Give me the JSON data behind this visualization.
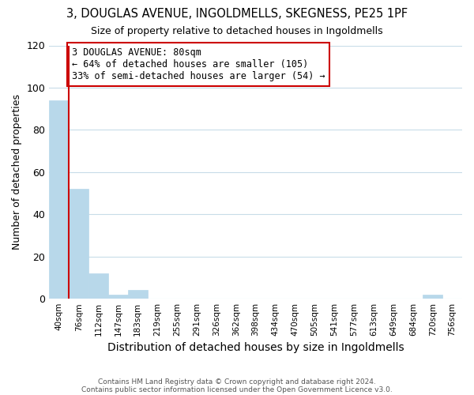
{
  "title": "3, DOUGLAS AVENUE, INGOLDMELLS, SKEGNESS, PE25 1PF",
  "subtitle": "Size of property relative to detached houses in Ingoldmells",
  "xlabel": "Distribution of detached houses by size in Ingoldmells",
  "ylabel": "Number of detached properties",
  "bar_color": "#b8d8ea",
  "bin_labels": [
    "40sqm",
    "76sqm",
    "112sqm",
    "147sqm",
    "183sqm",
    "219sqm",
    "255sqm",
    "291sqm",
    "326sqm",
    "362sqm",
    "398sqm",
    "434sqm",
    "470sqm",
    "505sqm",
    "541sqm",
    "577sqm",
    "613sqm",
    "649sqm",
    "684sqm",
    "720sqm",
    "756sqm"
  ],
  "bar_heights": [
    94,
    52,
    12,
    2,
    4,
    0,
    0,
    0,
    0,
    0,
    0,
    0,
    0,
    0,
    0,
    0,
    0,
    0,
    0,
    2,
    0
  ],
  "ylim": [
    0,
    120
  ],
  "yticks": [
    0,
    20,
    40,
    60,
    80,
    100,
    120
  ],
  "annotation_text": "3 DOUGLAS AVENUE: 80sqm\n← 64% of detached houses are smaller (105)\n33% of semi-detached houses are larger (54) →",
  "annotation_box_color": "#ffffff",
  "annotation_box_edge": "#cc0000",
  "property_line_color": "#cc0000",
  "footer_line1": "Contains HM Land Registry data © Crown copyright and database right 2024.",
  "footer_line2": "Contains public sector information licensed under the Open Government Licence v3.0.",
  "background_color": "#ffffff",
  "grid_color": "#c8dce8"
}
